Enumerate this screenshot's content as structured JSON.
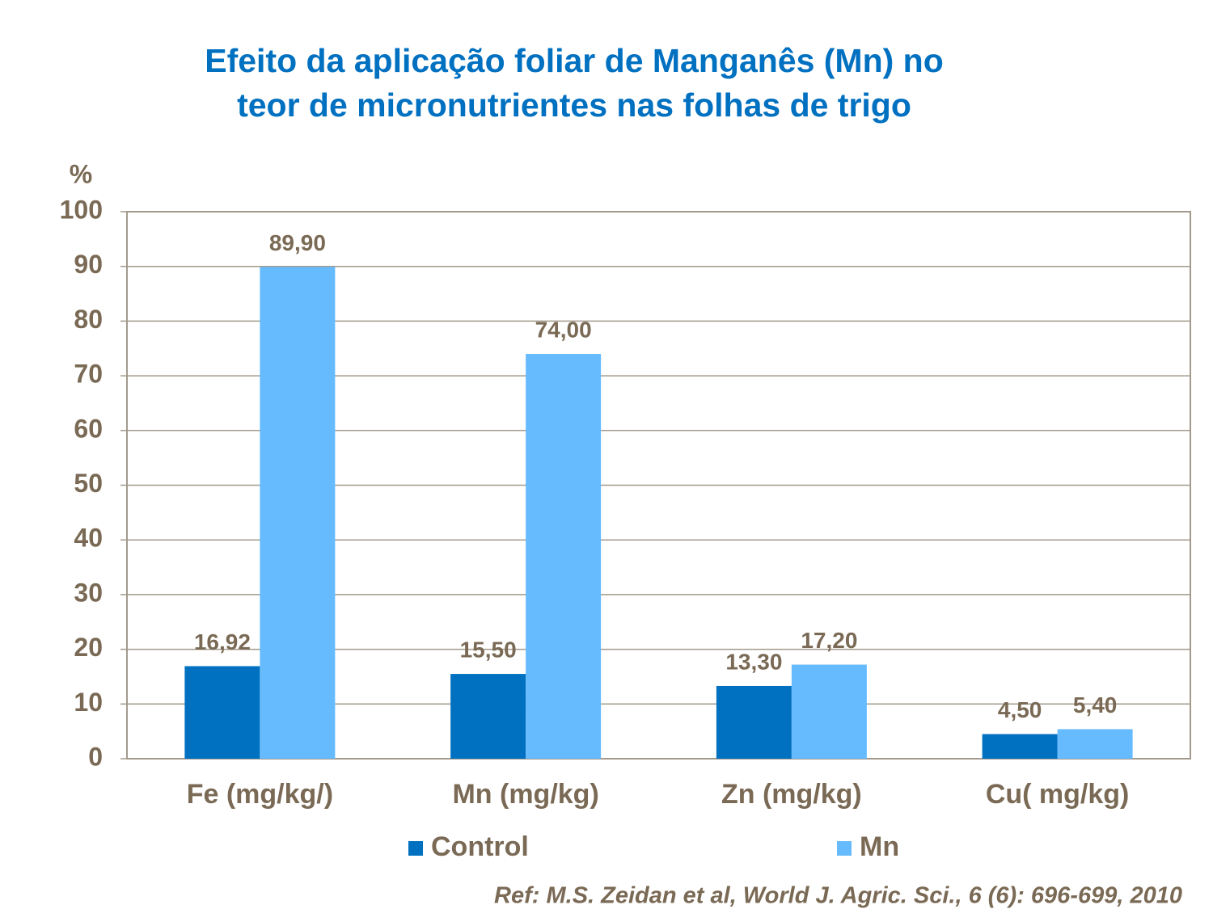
{
  "chart_data": {
    "type": "bar",
    "title_lines": [
      "Efeito da aplicação foliar de Manganês (Mn) no",
      "teor de micronutrientes nas folhas de trigo"
    ],
    "y_label": "%",
    "categories": [
      "Fe (mg/kg/)",
      "Mn (mg/kg)",
      "Zn (mg/kg)",
      "Cu( mg/kg)"
    ],
    "series": [
      {
        "name": "Control",
        "color": "#0070c0",
        "values": [
          16.92,
          15.5,
          13.3,
          4.5
        ],
        "value_labels": [
          "16,92",
          "15,50",
          "13,30",
          "4,50"
        ]
      },
      {
        "name": "Mn",
        "color": "#66bbff",
        "values": [
          89.9,
          74.0,
          17.2,
          5.4
        ],
        "value_labels": [
          "89,90",
          "74,00",
          "17,20",
          "5,40"
        ]
      }
    ],
    "ylim": [
      0,
      100
    ],
    "yticks": [
      0,
      10,
      20,
      30,
      40,
      50,
      60,
      70,
      80,
      90,
      100
    ],
    "grid": true,
    "legend": "bottom",
    "reference": "Ref: M.S. Zeidan et al, World J. Agric. Sci., 6 (6): 696-699, 2010"
  }
}
